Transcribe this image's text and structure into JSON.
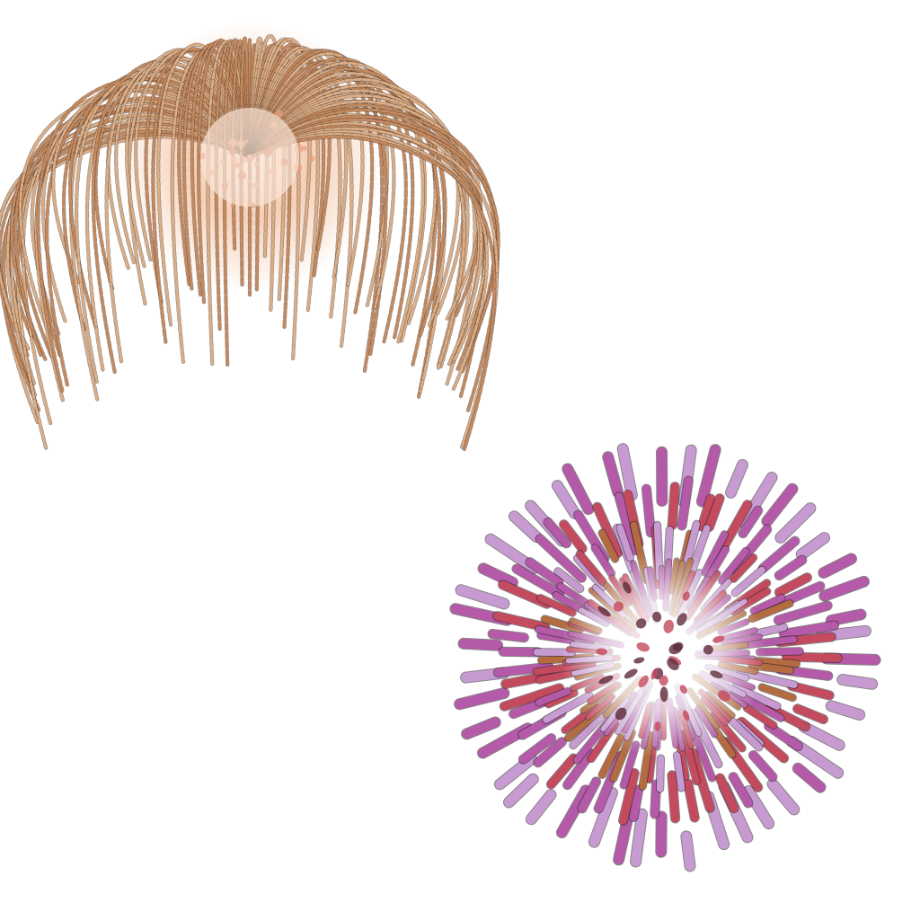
{
  "scene": {
    "background": "#ffffff",
    "fireworks": [
      {
        "name": "willow-burst",
        "style": "willow",
        "colors": {
          "core": "#f9e4d6",
          "glow": "#e8a27f",
          "stream": "#c58a5e",
          "stream_light": "#dcae86",
          "outline": "#3a2a22",
          "accent": "#d4694f"
        }
      },
      {
        "name": "peony-burst",
        "style": "peony",
        "colors": {
          "core": "#ffffff",
          "petal_outer": "#c79bd2",
          "petal_mid": "#b45aa8",
          "petal_inner": "#c44a5e",
          "accent": "#b36b3f",
          "dark": "#5e2a3a",
          "outline": "#2a1f26"
        }
      }
    ]
  }
}
